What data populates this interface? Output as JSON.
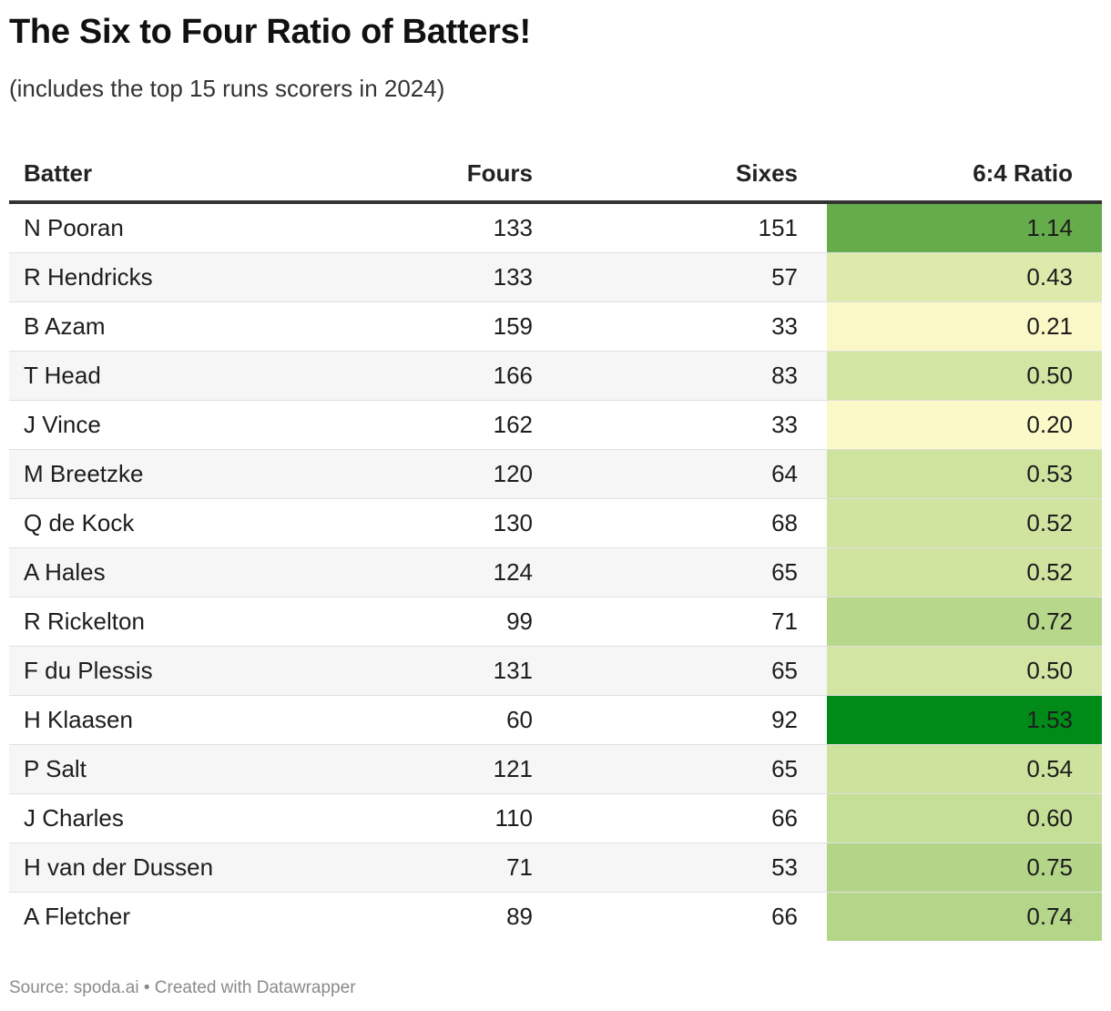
{
  "title": "The Six to Four Ratio of Batters!",
  "subtitle": "(includes the top 15 runs scorers in 2024)",
  "source": "Source: spoda.ai • Created with Datawrapper",
  "colors": {
    "high": "#008a17",
    "low": "#fcf9c8"
  },
  "chart_data": {
    "type": "table",
    "columns": [
      "Batter",
      "Fours",
      "Sixes",
      "6:4 Ratio"
    ],
    "rows": [
      {
        "batter": "N Pooran",
        "fours": 133,
        "sixes": 151,
        "ratio": "1.14"
      },
      {
        "batter": "R Hendricks",
        "fours": 133,
        "sixes": 57,
        "ratio": "0.43"
      },
      {
        "batter": "B Azam",
        "fours": 159,
        "sixes": 33,
        "ratio": "0.21"
      },
      {
        "batter": "T Head",
        "fours": 166,
        "sixes": 83,
        "ratio": "0.50"
      },
      {
        "batter": "J Vince",
        "fours": 162,
        "sixes": 33,
        "ratio": "0.20"
      },
      {
        "batter": "M Breetzke",
        "fours": 120,
        "sixes": 64,
        "ratio": "0.53"
      },
      {
        "batter": "Q de Kock",
        "fours": 130,
        "sixes": 68,
        "ratio": "0.52"
      },
      {
        "batter": "A Hales",
        "fours": 124,
        "sixes": 65,
        "ratio": "0.52"
      },
      {
        "batter": "R Rickelton",
        "fours": 99,
        "sixes": 71,
        "ratio": "0.72"
      },
      {
        "batter": "F du Plessis",
        "fours": 131,
        "sixes": 65,
        "ratio": "0.50"
      },
      {
        "batter": "H Klaasen",
        "fours": 60,
        "sixes": 92,
        "ratio": "1.53"
      },
      {
        "batter": "P Salt",
        "fours": 121,
        "sixes": 65,
        "ratio": "0.54"
      },
      {
        "batter": "J Charles",
        "fours": 110,
        "sixes": 66,
        "ratio": "0.60"
      },
      {
        "batter": "H van der Dussen",
        "fours": 71,
        "sixes": 53,
        "ratio": "0.75"
      },
      {
        "batter": "A Fletcher",
        "fours": 89,
        "sixes": 66,
        "ratio": "0.74"
      }
    ],
    "heatmap_range": [
      0.2,
      1.53
    ]
  }
}
